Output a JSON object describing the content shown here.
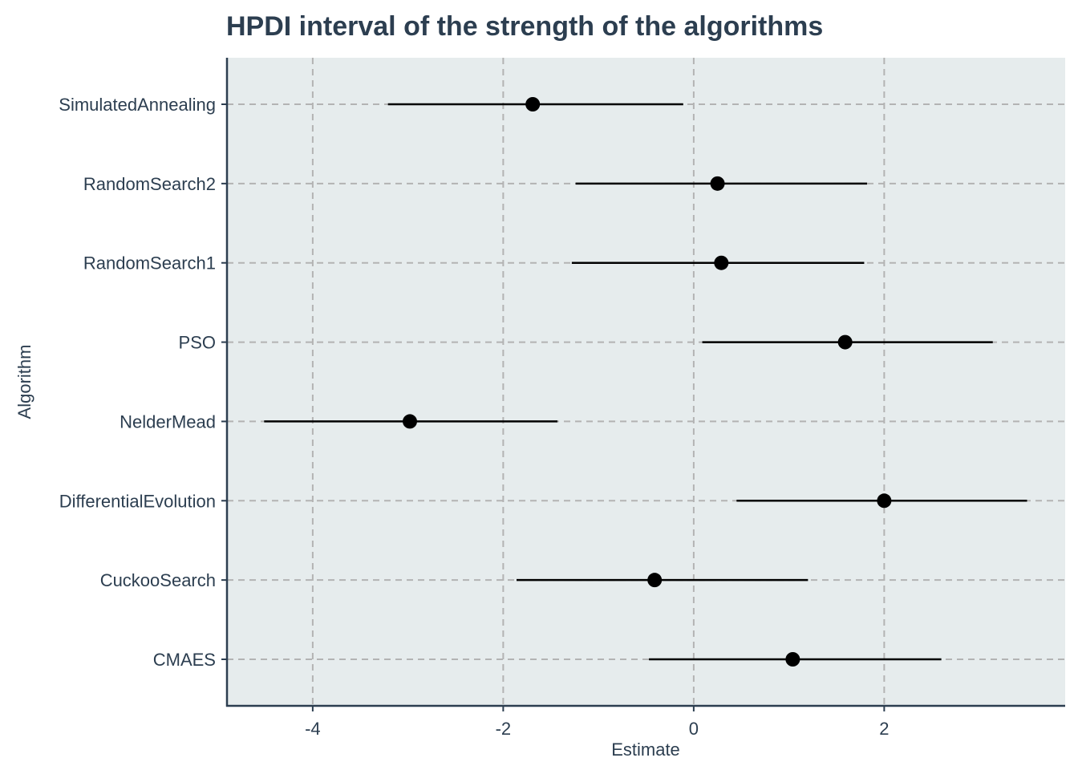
{
  "chart_data": {
    "type": "interval",
    "title": "HPDI interval of the strength of the algorithms",
    "xlabel": "Estimate",
    "ylabel": "Algorithm",
    "xlim": [
      -4.9,
      3.9
    ],
    "x_ticks": [
      -4,
      -2,
      0,
      2
    ],
    "x_tick_labels": [
      "-4",
      "-2",
      "0",
      "2"
    ],
    "grid": true,
    "grid_style": "dashed",
    "legend": "none",
    "categories": [
      "CMAES",
      "CuckooSearch",
      "DifferentialEvolution",
      "NelderMead",
      "PSO",
      "RandomSearch1",
      "RandomSearch2",
      "SimulatedAnnealing"
    ],
    "estimates": [
      1.04,
      -0.41,
      2.0,
      -2.98,
      1.59,
      0.29,
      0.25,
      -1.69
    ],
    "lower": [
      -0.47,
      -1.86,
      0.45,
      -4.51,
      0.09,
      -1.28,
      -1.24,
      -3.21
    ],
    "upper": [
      2.6,
      1.2,
      3.5,
      -1.43,
      3.14,
      1.79,
      1.82,
      -0.11
    ],
    "colors": {
      "panel_bg": "#e6eced",
      "grid": "#b3b3b3",
      "axis": "#2c3e50",
      "mark": "#000000",
      "text": "#2c3e50"
    }
  }
}
